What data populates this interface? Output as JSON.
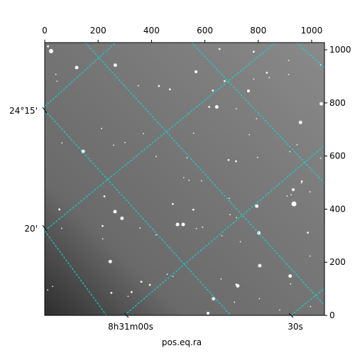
{
  "chart_data": {
    "type": "image",
    "xlabel": "pos.eq.ra",
    "xlim": [
      0,
      1048
    ],
    "xticks": [
      0,
      200,
      400,
      600,
      800,
      1000
    ],
    "ylim": [
      0,
      1027
    ],
    "yticks": [
      0,
      200,
      400,
      600,
      800,
      1000
    ],
    "world_xticks": [
      "8h31m00s",
      "30s"
    ],
    "world_yticks": [
      "24°15'",
      "20'"
    ],
    "grid_color": "#00e5e5"
  }
}
